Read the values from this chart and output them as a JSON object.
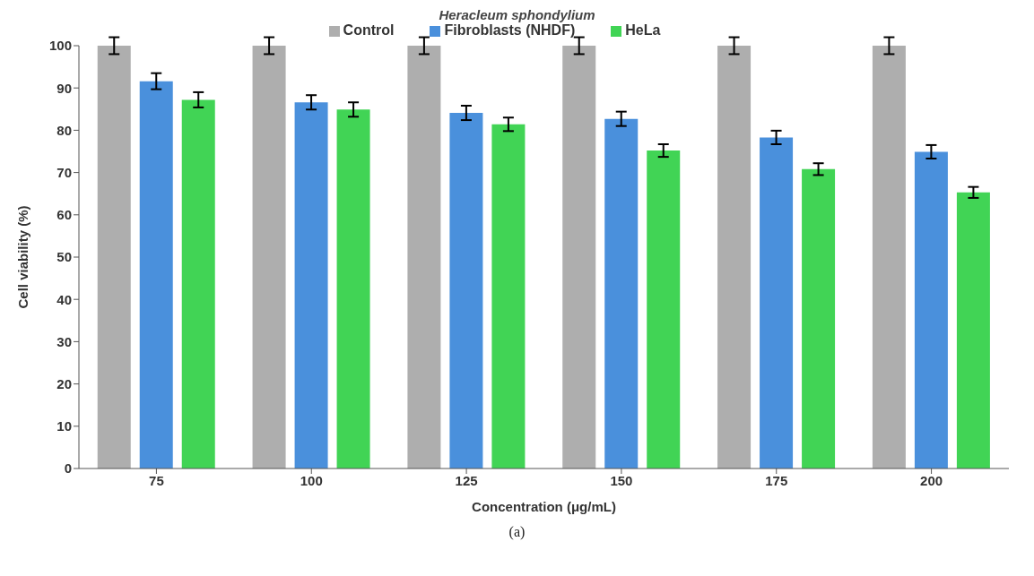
{
  "chart_data": {
    "type": "bar",
    "title": "Heracleum sphondylium",
    "xlabel": "Concentration (μg/mL)",
    "ylabel": "Cell viability (%)",
    "categories": [
      "75",
      "100",
      "125",
      "150",
      "175",
      "200"
    ],
    "series": [
      {
        "name": "Control",
        "color": "#aeaeae",
        "values": [
          100,
          100,
          100,
          100,
          100,
          100
        ],
        "errors": [
          2,
          2,
          2,
          2,
          2,
          2
        ]
      },
      {
        "name": "Fibroblasts (NHDF)",
        "color": "#4a90dc",
        "values": [
          91.6,
          86.6,
          84.1,
          82.7,
          78.3,
          74.9
        ],
        "errors": [
          1.9,
          1.7,
          1.7,
          1.7,
          1.6,
          1.6
        ]
      },
      {
        "name": "HeLa",
        "color": "#41d455",
        "values": [
          87.2,
          84.9,
          81.4,
          75.2,
          70.8,
          65.3
        ],
        "errors": [
          1.8,
          1.7,
          1.6,
          1.5,
          1.4,
          1.3
        ]
      }
    ],
    "ylim": [
      0,
      100
    ],
    "yticks": [
      0,
      10,
      20,
      30,
      40,
      50,
      60,
      70,
      80,
      90,
      100
    ],
    "grid": false,
    "legend": "top",
    "annotations": [
      "(a)"
    ]
  }
}
